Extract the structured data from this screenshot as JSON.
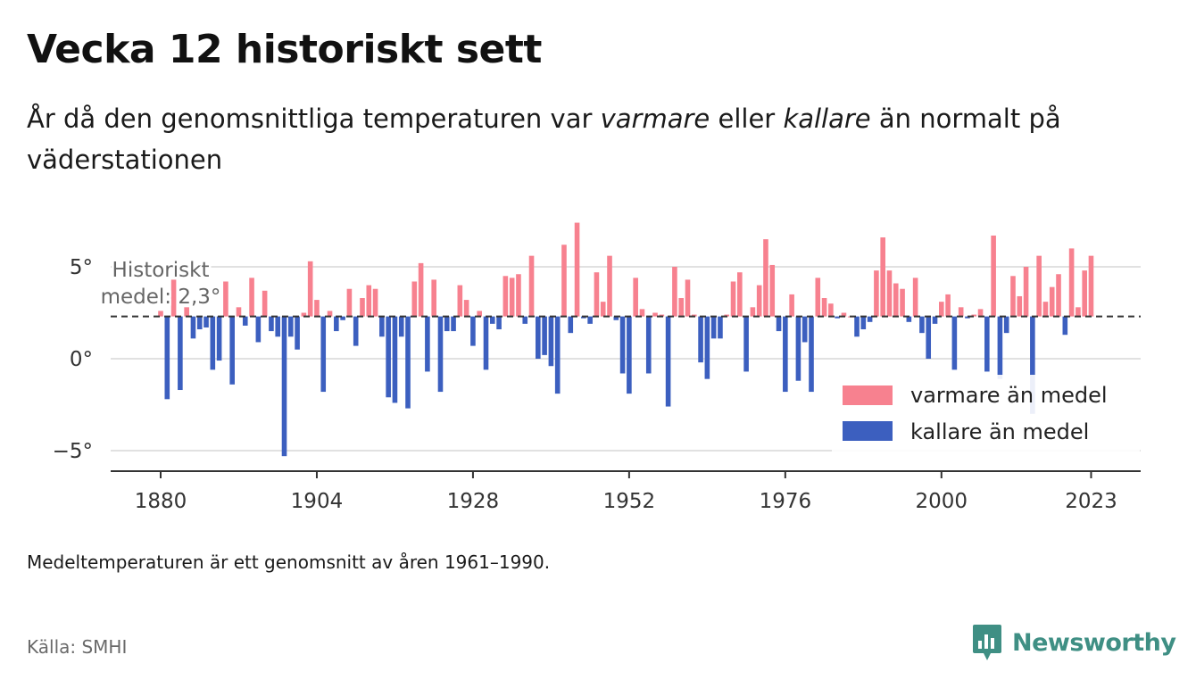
{
  "header": {
    "title": "Vecka 12 historiskt sett",
    "subtitle_part1": "År då den genomsnittliga temperaturen var ",
    "subtitle_warm": "varmare",
    "subtitle_part2": " eller ",
    "subtitle_cold": "kallare",
    "subtitle_part3": " än normalt på väderstationen"
  },
  "chart_data": {
    "type": "bar",
    "baseline": 2.3,
    "baseline_label_line1": "Historiskt",
    "baseline_label_line2": "medel: 2,3°",
    "ylim": [
      -6,
      8.5
    ],
    "yticks": [
      -5,
      0,
      5
    ],
    "ytick_labels": [
      "−5°",
      "0°",
      "5°"
    ],
    "xticks": [
      1880,
      1904,
      1928,
      1952,
      1976,
      2000,
      2023
    ],
    "grid": "horizontal",
    "legend_position": "bottom-right",
    "colors": {
      "warm": "#f7818f",
      "cold": "#3c5fbf",
      "baseline": "#333333",
      "grid": "#e1e1e1"
    },
    "legend": [
      "varmare än medel",
      "kallare än medel"
    ],
    "years": [
      1880,
      1881,
      1882,
      1883,
      1884,
      1885,
      1886,
      1887,
      1888,
      1889,
      1890,
      1891,
      1892,
      1893,
      1894,
      1895,
      1896,
      1897,
      1898,
      1899,
      1900,
      1901,
      1902,
      1903,
      1904,
      1905,
      1906,
      1907,
      1908,
      1909,
      1910,
      1911,
      1912,
      1913,
      1914,
      1915,
      1916,
      1917,
      1918,
      1919,
      1920,
      1921,
      1922,
      1923,
      1924,
      1925,
      1926,
      1927,
      1928,
      1929,
      1930,
      1931,
      1932,
      1933,
      1934,
      1935,
      1936,
      1937,
      1938,
      1939,
      1940,
      1941,
      1942,
      1943,
      1944,
      1945,
      1946,
      1947,
      1948,
      1949,
      1950,
      1951,
      1952,
      1953,
      1954,
      1955,
      1956,
      1957,
      1958,
      1959,
      1960,
      1961,
      1962,
      1963,
      1964,
      1965,
      1966,
      1967,
      1968,
      1969,
      1970,
      1971,
      1972,
      1973,
      1974,
      1975,
      1976,
      1977,
      1978,
      1979,
      1980,
      1981,
      1982,
      1983,
      1984,
      1985,
      1986,
      1987,
      1988,
      1989,
      1990,
      1991,
      1992,
      1993,
      1994,
      1995,
      1996,
      1997,
      1998,
      1999,
      2000,
      2001,
      2002,
      2003,
      2004,
      2005,
      2006,
      2007,
      2008,
      2009,
      2010,
      2011,
      2012,
      2013,
      2014,
      2015,
      2016,
      2017,
      2018,
      2019,
      2020,
      2021,
      2022,
      2023
    ],
    "values": [
      2.6,
      -2.2,
      4.3,
      -1.7,
      2.8,
      1.1,
      1.6,
      1.7,
      -0.6,
      -0.1,
      4.2,
      -1.4,
      2.8,
      1.8,
      4.4,
      0.9,
      3.7,
      1.5,
      1.2,
      -5.3,
      1.2,
      0.5,
      2.5,
      5.3,
      3.2,
      -1.8,
      2.6,
      1.5,
      2.1,
      3.8,
      0.7,
      3.3,
      4.0,
      3.8,
      1.2,
      -2.1,
      -2.4,
      1.2,
      -2.7,
      4.2,
      5.2,
      -0.7,
      4.3,
      -1.8,
      1.5,
      1.5,
      4.0,
      3.2,
      0.7,
      2.6,
      -0.6,
      1.9,
      1.6,
      4.5,
      4.4,
      4.6,
      1.9,
      5.6,
      0.0,
      0.2,
      -0.4,
      -1.9,
      6.2,
      1.4,
      7.4,
      2.2,
      1.9,
      4.7,
      3.1,
      5.6,
      2.1,
      -0.8,
      -1.9,
      4.4,
      2.7,
      -0.8,
      2.5,
      2.4,
      -2.6,
      5.0,
      3.3,
      4.3,
      2.4,
      -0.2,
      -1.1,
      1.1,
      1.1,
      2.4,
      4.2,
      4.7,
      -0.7,
      2.8,
      4.0,
      6.5,
      5.1,
      1.5,
      -1.8,
      3.5,
      -1.2,
      0.9,
      -1.8,
      4.4,
      3.3,
      3.0,
      2.2,
      2.5,
      2.3,
      1.2,
      1.6,
      2.0,
      4.8,
      6.6,
      4.8,
      4.1,
      3.8,
      2.0,
      4.4,
      1.4,
      0.0,
      1.9,
      3.1,
      3.5,
      -0.6,
      2.8,
      2.2,
      2.4,
      2.7,
      -0.7,
      6.7,
      -1.1,
      1.4,
      4.5,
      3.4,
      5.0,
      -3.0,
      5.6,
      3.1,
      3.9,
      4.6,
      1.3,
      6.0,
      2.8,
      4.8,
      5.6
    ]
  },
  "footer": {
    "note": "Medeltemperaturen är ett genomsnitt av åren 1961–1990.",
    "source": "Källa: SMHI",
    "brand": "Newsworthy"
  }
}
